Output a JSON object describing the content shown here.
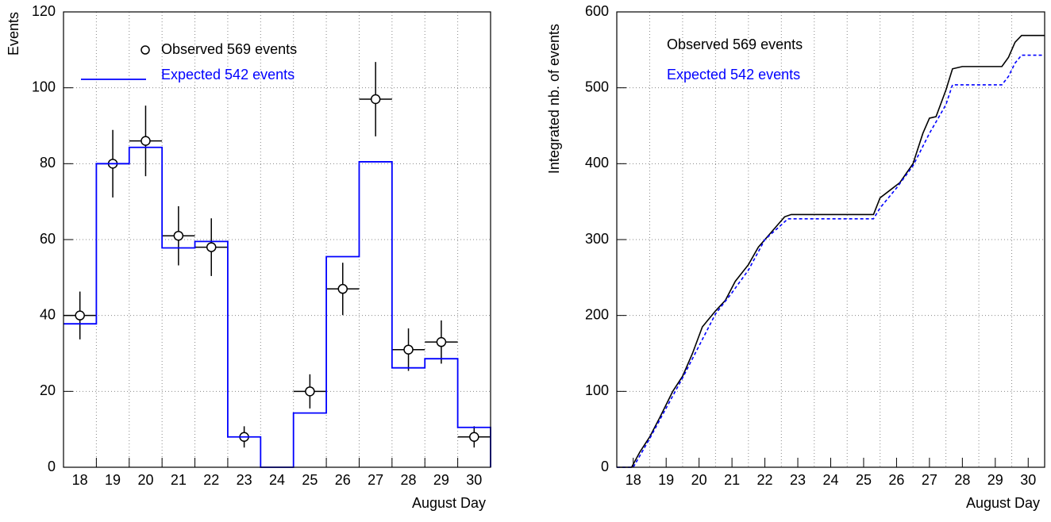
{
  "chart_data": [
    {
      "type": "histogram",
      "xlabel": "August Day",
      "ylabel": "Events",
      "categories": [
        "18",
        "19",
        "20",
        "21",
        "22",
        "23",
        "24",
        "25",
        "26",
        "27",
        "28",
        "29",
        "30"
      ],
      "series": [
        {
          "name": "Observed 569 events",
          "color": "#000000",
          "values": [
            40,
            80,
            86,
            61,
            58,
            8,
            null,
            20,
            47,
            97,
            31,
            33,
            8
          ],
          "errors": [
            6.3,
            8.9,
            9.3,
            7.8,
            7.6,
            2.8,
            null,
            4.5,
            6.9,
            9.8,
            5.6,
            5.7,
            2.8
          ]
        },
        {
          "name": "Expected 542 events",
          "color": "#0000ff",
          "values": [
            37.8,
            80,
            84.3,
            57.8,
            59.5,
            8,
            0,
            14.3,
            55.5,
            80.5,
            26.2,
            28.6,
            10.5
          ]
        }
      ],
      "ylim": [
        0,
        120
      ],
      "yticks": [
        0,
        20,
        40,
        60,
        80,
        100,
        120
      ],
      "grid": true,
      "legend": "upper left"
    },
    {
      "type": "line",
      "xlabel": "August Day",
      "ylabel": "Integrated nb. of events",
      "xlim": [
        17.5,
        30.5
      ],
      "xticks": [
        18,
        19,
        20,
        21,
        22,
        23,
        24,
        25,
        26,
        27,
        28,
        29,
        30
      ],
      "series": [
        {
          "name": "Observed 569 events",
          "color": "#000000",
          "x": [
            17.5,
            17.95,
            18.2,
            18.5,
            18.8,
            19.2,
            19.5,
            19.8,
            20.1,
            20.5,
            20.8,
            21.1,
            21.5,
            21.8,
            22.1,
            22.4,
            22.6,
            22.8,
            25.3,
            25.5,
            25.8,
            26.1,
            26.5,
            26.8,
            27.0,
            27.2,
            27.5,
            27.7,
            28.0,
            29.2,
            29.4,
            29.6,
            29.8,
            30.5
          ],
          "values": [
            0,
            0,
            20,
            40,
            65,
            100,
            120,
            150,
            185,
            206,
            220,
            245,
            267,
            290,
            305,
            320,
            330,
            333,
            333,
            355,
            365,
            375,
            400,
            440,
            460,
            462,
            497,
            525,
            528,
            528,
            540,
            560,
            569,
            569
          ]
        },
        {
          "name": "Expected 542 events",
          "color": "#0000ff",
          "dashed": true,
          "x": [
            17.5,
            18.0,
            18.5,
            19.0,
            19.5,
            20.0,
            20.5,
            21.0,
            21.5,
            22.0,
            22.5,
            22.7,
            25.3,
            25.5,
            26.0,
            26.5,
            27.0,
            27.5,
            27.7,
            29.2,
            29.4,
            29.6,
            29.8,
            30.5
          ],
          "values": [
            0,
            0,
            37.8,
            78,
            117.8,
            160,
            202.1,
            230,
            259.9,
            300,
            319.4,
            327.4,
            327.4,
            341.7,
            368,
            397.2,
            440,
            477.7,
            503.9,
            503.9,
            515,
            532.5,
            543,
            543
          ]
        }
      ],
      "ylim": [
        0,
        600
      ],
      "yticks": [
        0,
        100,
        200,
        300,
        400,
        500,
        600
      ],
      "grid": true,
      "legend": "upper left"
    }
  ]
}
